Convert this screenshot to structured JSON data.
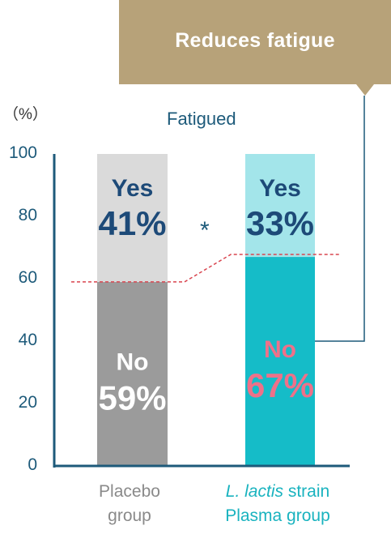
{
  "callout": {
    "text": "Reduces fatigue"
  },
  "chart_data": {
    "type": "stacked-bar",
    "title": "Fatigued",
    "unit_label": "（%）",
    "ylim": [
      0,
      100
    ],
    "yticks": [
      "0",
      "20",
      "40",
      "60",
      "80",
      "100"
    ],
    "categories": [
      {
        "line1_italic": "",
        "line1": "Placebo",
        "line2": "group"
      },
      {
        "line1_italic": "L. lactis",
        "line1": " strain",
        "line2": "Plasma group"
      }
    ],
    "series": [
      {
        "name": "No",
        "values": [
          59,
          67
        ],
        "labels": [
          "59%",
          "67%"
        ]
      },
      {
        "name": "Yes",
        "values": [
          41,
          33
        ],
        "labels": [
          "41%",
          "33%"
        ]
      }
    ],
    "significance": "*",
    "colors": {
      "placebo_no": "#9b9b9b",
      "placebo_yes": "#dadada",
      "lactis_no": "#15bcc8",
      "lactis_yes": "#a3e5ea",
      "axis": "#1d5a7a",
      "yes_label": "#1d4a78",
      "placebo_no_label": "#ffffff",
      "lactis_no_label": "#ee7189",
      "dashed_line": "#d9454f",
      "callout_bg": "#b7a279"
    }
  }
}
